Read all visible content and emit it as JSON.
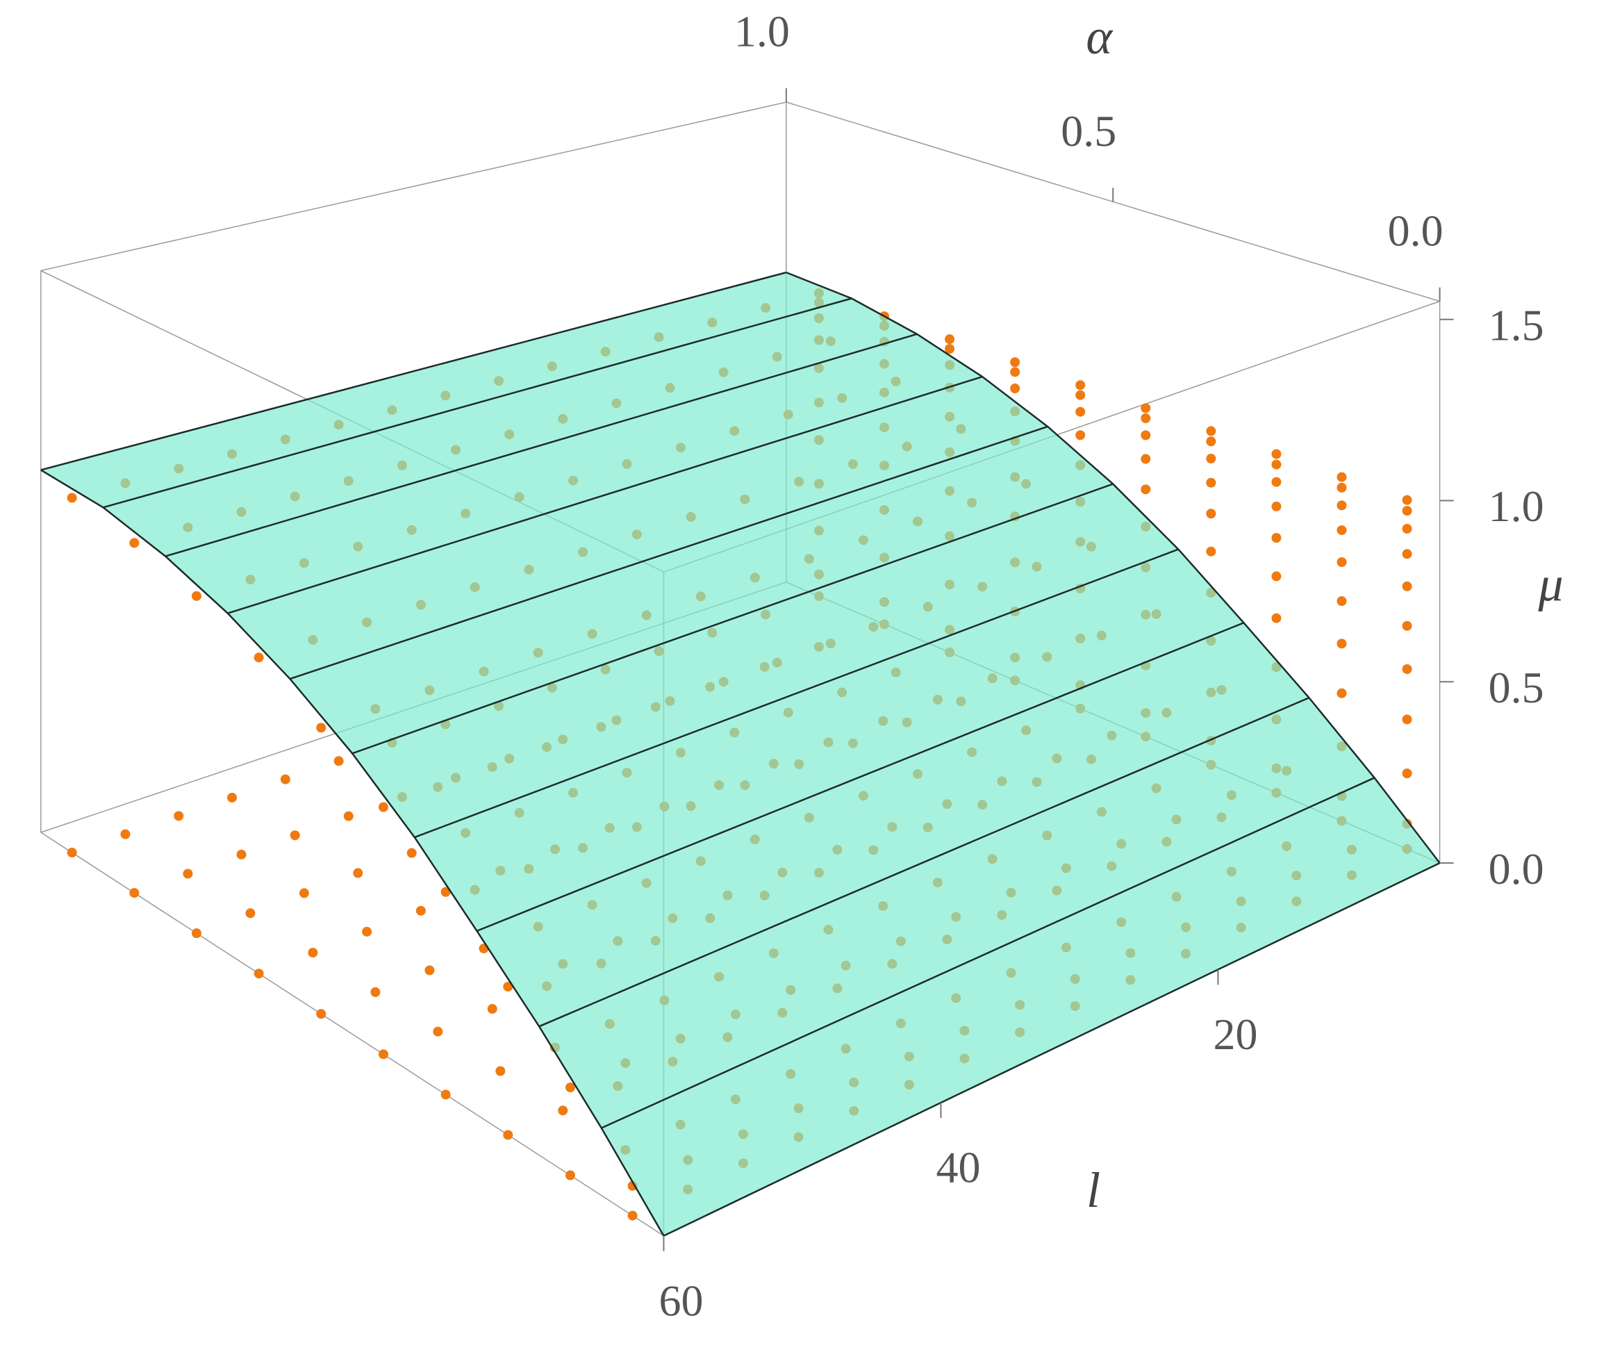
{
  "chart_data": {
    "type": "surface3d",
    "axis_labels": {
      "x": "l",
      "y": "α",
      "z": "μ"
    },
    "xlim": [
      4,
      60
    ],
    "xticks": [
      20,
      40,
      60
    ],
    "ylim": [
      0,
      1
    ],
    "yticks": [
      {
        "value": 0,
        "label": "0.0"
      },
      {
        "value": 0.5,
        "label": "0.5"
      },
      {
        "value": 1,
        "label": "1.0"
      }
    ],
    "zlim": [
      0,
      1.55
    ],
    "zticks": [
      {
        "value": 0,
        "label": "0.0"
      },
      {
        "value": 0.5,
        "label": "0.5"
      },
      {
        "value": 1,
        "label": "1.0"
      },
      {
        "value": 1.5,
        "label": "1.5"
      }
    ],
    "surface": {
      "color": "#7eecd0",
      "mesh_color": "#1d2b2b",
      "alpha": [
        0,
        0.1,
        0.2,
        0.3,
        0.4,
        0.5,
        0.6,
        0.7,
        0.8,
        0.9,
        1
      ],
      "mu": [
        0,
        0.16,
        0.31,
        0.45,
        0.59,
        0.71,
        0.81,
        0.89,
        0.95,
        0.99,
        1.0
      ]
    },
    "points": {
      "color": "#f07a10",
      "l": [
        4,
        8,
        12,
        16,
        20,
        24,
        28,
        32,
        36,
        40,
        44,
        48,
        52,
        56,
        60
      ],
      "alpha": [
        0.05,
        0.15,
        0.25,
        0.35,
        0.45,
        0.55,
        0.65,
        0.75,
        0.85,
        0.95
      ],
      "mu": [
        0.07,
        0.21,
        0.36,
        0.5,
        0.62,
        0.73,
        0.82,
        0.89,
        0.94,
        0.97
      ]
    }
  }
}
